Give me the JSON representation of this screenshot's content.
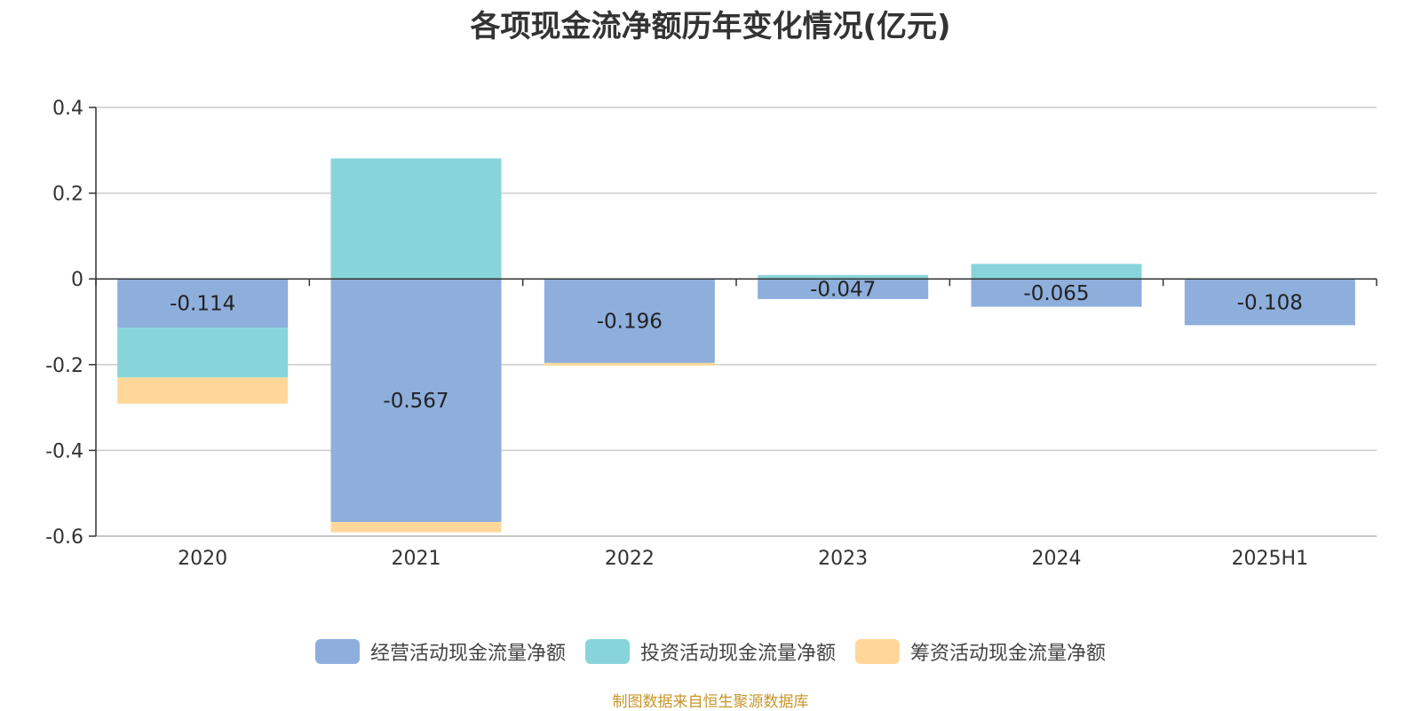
{
  "chart_data": {
    "type": "bar",
    "stacked": true,
    "title": "各项现金流净额历年变化情况(亿元)",
    "categories": [
      "2020",
      "2021",
      "2022",
      "2023",
      "2024",
      "2025H1"
    ],
    "series": [
      {
        "name": "经营活动现金流量净额",
        "color": "#8eaedc",
        "values": [
          -0.114,
          -0.567,
          -0.196,
          -0.047,
          -0.065,
          -0.108
        ],
        "data_labels": [
          "-0.114",
          "-0.567",
          "-0.196",
          "-0.047",
          "-0.065",
          "-0.108"
        ]
      },
      {
        "name": "投资活动现金流量净额",
        "color": "#87d5da",
        "values": [
          -0.116,
          0.281,
          0,
          0.009,
          0.035,
          0.001
        ]
      },
      {
        "name": "筹资活动现金流量净额",
        "color": "#ffd899",
        "values": [
          -0.061,
          -0.024,
          -0.006,
          0,
          0,
          0
        ]
      }
    ],
    "ylim": [
      -0.6,
      0.4
    ],
    "yticks": [
      0.4,
      0.2,
      0,
      -0.2,
      -0.4,
      -0.6
    ],
    "ytick_labels": [
      "0.4",
      "0.2",
      "0",
      "-0.2",
      "-0.4",
      "-0.6"
    ],
    "grid": true,
    "legend_position": "bottom",
    "source": "制图数据来自恒生聚源数据库"
  }
}
